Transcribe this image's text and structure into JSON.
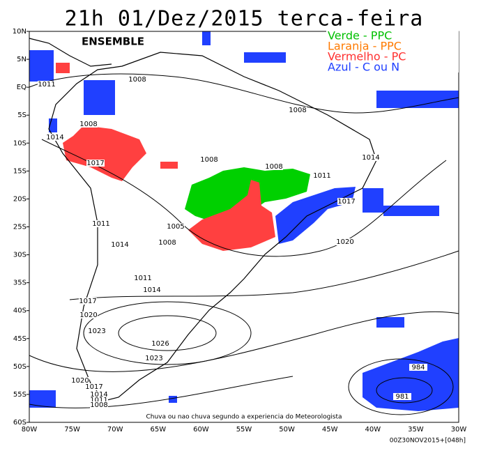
{
  "header": {
    "title": "21h 01/Dez/2015 terca-feira",
    "subtitle": "ENSEMBLE"
  },
  "legend": [
    "Verde - PPC",
    "Laranja - PPC",
    "Vermelho - PC",
    "Azul - C ou N"
  ],
  "axes": {
    "lat_labels": [
      "10N",
      "5N",
      "EQ",
      "5S",
      "10S",
      "15S",
      "20S",
      "25S",
      "30S",
      "35S",
      "40S",
      "45S",
      "50S",
      "55S",
      "60S"
    ],
    "lon_labels": [
      "80W",
      "75W",
      "70W",
      "65W",
      "60W",
      "55W",
      "50W",
      "45W",
      "40W",
      "35W",
      "30W"
    ]
  },
  "isobar_labels": [
    "1011",
    "1008",
    "1008",
    "1008",
    "1014",
    "1017",
    "1008",
    "1008",
    "1011",
    "1014",
    "1017",
    "1011",
    "1005",
    "1014",
    "1008",
    "1020",
    "1011",
    "1014",
    "1017",
    "1020",
    "1023",
    "1026",
    "1023",
    "984",
    "981",
    "1020",
    "1017",
    "1014",
    "1011",
    "1008"
  ],
  "footer": {
    "note": "Chuva ou nao chuva segundo a experiencia do Meteorologista",
    "run": "00Z30NOV2015+[048h]"
  }
}
